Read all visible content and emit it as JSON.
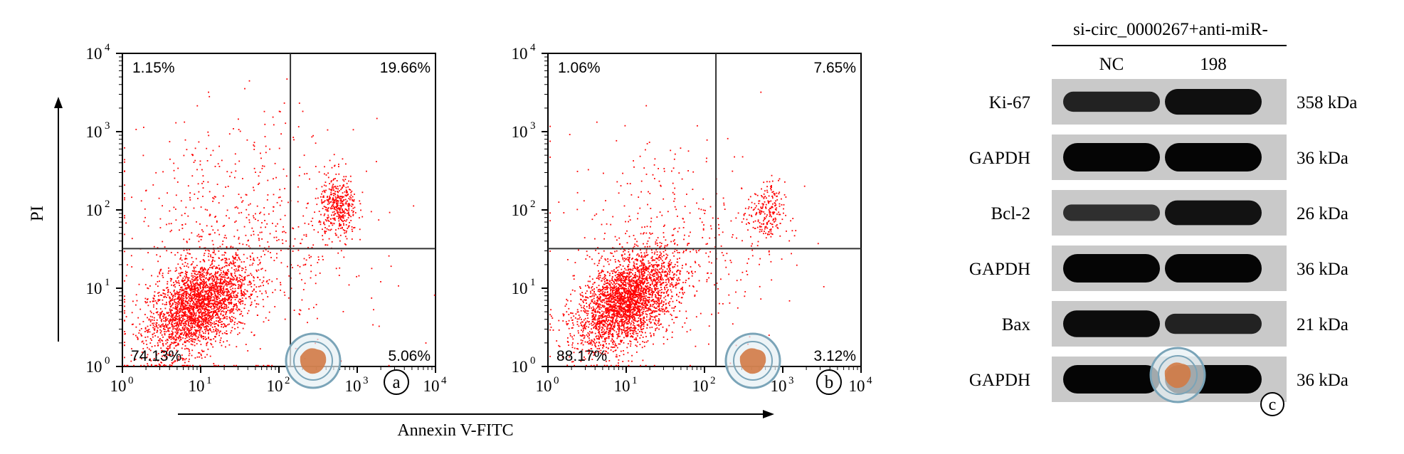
{
  "chart_data": [
    {
      "type": "scatter",
      "panel_label": "a",
      "xlabel": "Annexin V-FITC",
      "ylabel": "PI",
      "x_scale": "log",
      "y_scale": "log",
      "xlim": [
        1,
        10000
      ],
      "ylim": [
        1,
        10000
      ],
      "x_ticks": [
        "10",
        "10",
        "10",
        "10",
        "10"
      ],
      "x_tick_exponents": [
        "0",
        "1",
        "2",
        "3",
        "4"
      ],
      "y_ticks": [
        "10",
        "10",
        "10",
        "10",
        "10"
      ],
      "y_tick_exponents": [
        "0",
        "1",
        "2",
        "3",
        "4"
      ],
      "quadrant_gate": {
        "x": 140,
        "y": 32
      },
      "quadrant_percentages": {
        "upper_left": "1.15%",
        "upper_right": "19.66%",
        "lower_left": "74.13%",
        "lower_right": "5.06%"
      },
      "point_color": "#ff0000",
      "clusters": [
        {
          "center": [
            9,
            6
          ],
          "spread": 0.32,
          "count": 2600
        },
        {
          "center": [
            560,
            110
          ],
          "spread": 0.12,
          "count": 420
        },
        {
          "center": [
            30,
            40
          ],
          "spread": 0.75,
          "count": 700
        }
      ]
    },
    {
      "type": "scatter",
      "panel_label": "b",
      "xlabel": "Annexin V-FITC",
      "ylabel": "",
      "x_scale": "log",
      "y_scale": "log",
      "xlim": [
        1,
        10000
      ],
      "ylim": [
        1,
        10000
      ],
      "x_ticks": [
        "10",
        "10",
        "10",
        "10",
        "10"
      ],
      "x_tick_exponents": [
        "0",
        "1",
        "2",
        "3",
        "4"
      ],
      "y_ticks": [
        "10",
        "10",
        "10",
        "10",
        "10"
      ],
      "y_tick_exponents": [
        "0",
        "1",
        "2",
        "3",
        "4"
      ],
      "quadrant_gate": {
        "x": 140,
        "y": 32
      },
      "quadrant_percentages": {
        "upper_left": "1.06%",
        "upper_right": "7.65%",
        "lower_left": "88.17%",
        "lower_right": "3.12%"
      },
      "point_color": "#ff0000",
      "clusters": [
        {
          "center": [
            10,
            7
          ],
          "spread": 0.32,
          "count": 2900
        },
        {
          "center": [
            600,
            90
          ],
          "spread": 0.12,
          "count": 220
        },
        {
          "center": [
            40,
            40
          ],
          "spread": 0.7,
          "count": 420
        }
      ]
    }
  ],
  "western_blot": {
    "panel_label": "c",
    "header": "si-circ_0000267+anti-miR-",
    "lanes": [
      "NC",
      "198"
    ],
    "bands": [
      {
        "protein": "Ki-67",
        "size": "358 kDa",
        "intensity": [
          0.55,
          0.85
        ]
      },
      {
        "protein": "GAPDH",
        "size": "36 kDa",
        "intensity": [
          1.0,
          1.0
        ]
      },
      {
        "protein": "Bcl-2",
        "size": "26 kDa",
        "intensity": [
          0.35,
          0.8
        ]
      },
      {
        "protein": "GAPDH",
        "size": "36 kDa",
        "intensity": [
          1.0,
          1.0
        ]
      },
      {
        "protein": "Bax",
        "size": "21 kDa",
        "intensity": [
          0.9,
          0.55
        ]
      },
      {
        "protein": "GAPDH",
        "size": "36 kDa",
        "intensity": [
          1.0,
          1.0
        ]
      }
    ]
  },
  "watermark_icon": "medical-association-seal-icon"
}
